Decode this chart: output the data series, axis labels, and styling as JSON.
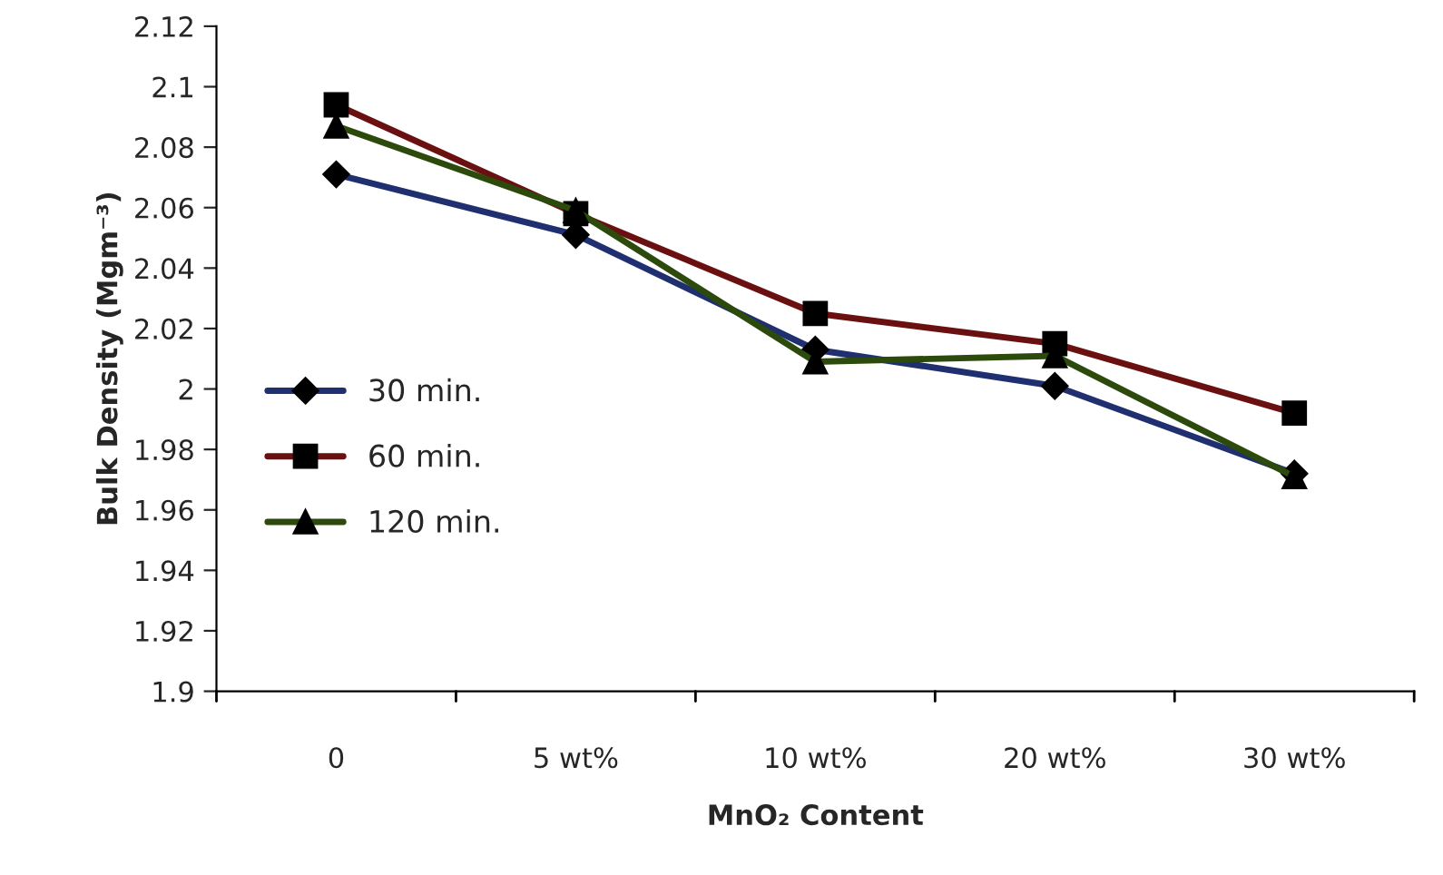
{
  "chart_data": {
    "type": "line",
    "xlabel": "MnO₂ Content",
    "ylabel": "Bulk Density (Mgm⁻³)",
    "categories": [
      "0",
      "5 wt%",
      "10 wt%",
      "20 wt%",
      "30 wt%"
    ],
    "series": [
      {
        "name": "30 min.",
        "color": "#1f2f6f",
        "marker": "diamond",
        "values": [
          2.071,
          2.051,
          2.013,
          2.001,
          1.972
        ]
      },
      {
        "name": "60 min.",
        "color": "#6b1010",
        "marker": "square",
        "values": [
          2.094,
          2.058,
          2.025,
          2.015,
          1.992
        ]
      },
      {
        "name": "120 min.",
        "color": "#2c4a0c",
        "marker": "triangle",
        "values": [
          2.087,
          2.059,
          2.009,
          2.011,
          1.971
        ]
      }
    ],
    "ylim": [
      1.9,
      2.12
    ],
    "yticks": [
      {
        "value": 1.9,
        "label": "1.9"
      },
      1.92,
      1.94,
      1.96,
      1.98,
      {
        "value": 2.0,
        "label": "2"
      },
      2.02,
      2.04,
      2.06,
      2.08,
      {
        "value": 2.1,
        "label": "2.1"
      },
      2.12
    ],
    "grid": false,
    "legend": "center left",
    "line_style": "solid"
  }
}
